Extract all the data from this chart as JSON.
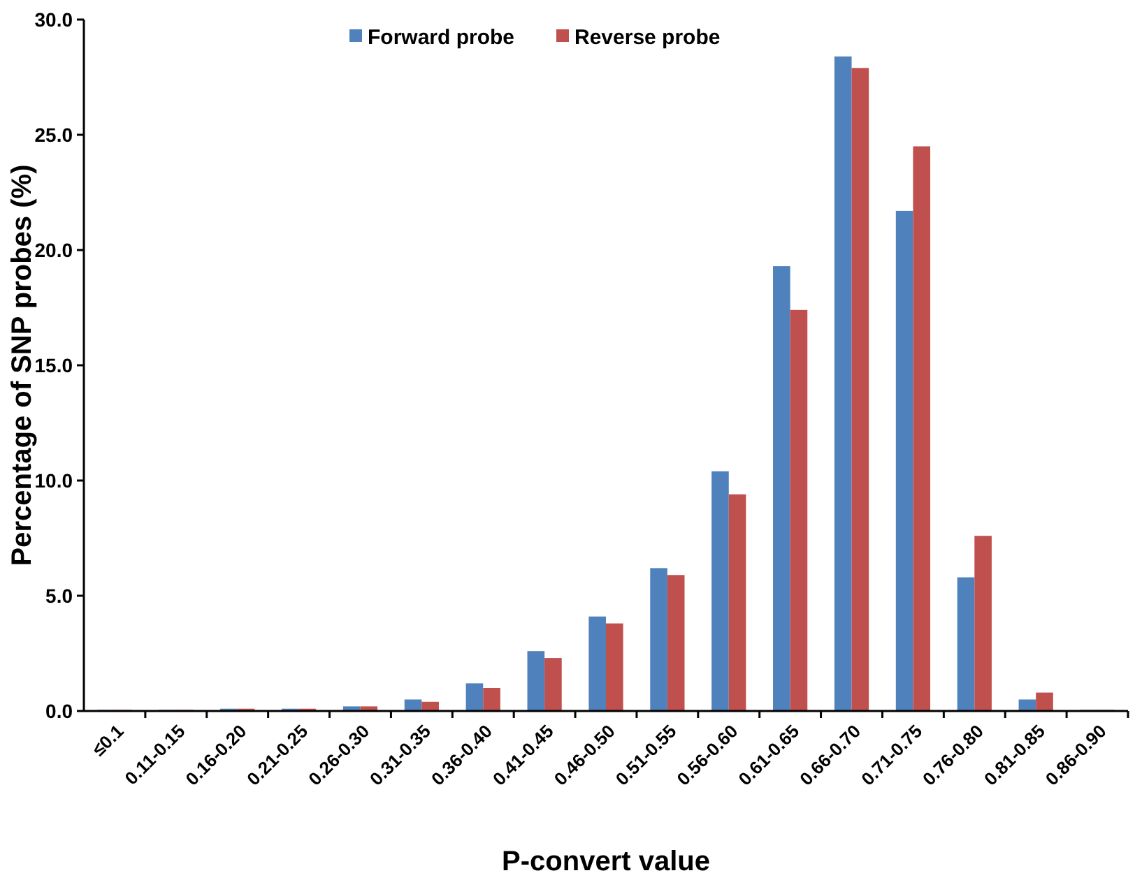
{
  "chart_data": {
    "type": "bar",
    "xlabel": "P-convert value",
    "ylabel": "Percentage of SNP probes (%)",
    "categories": [
      "≤0.1",
      "0.11-0.15",
      "0.16-0.20",
      "0.21-0.25",
      "0.26-0.30",
      "0.31-0.35",
      "0.36-0.40",
      "0.41-0.45",
      "0.46-0.50",
      "0.51-0.55",
      "0.56-0.60",
      "0.61-0.65",
      "0.66-0.70",
      "0.71-0.75",
      "0.76-0.80",
      "0.81-0.85",
      "0.86-0.90"
    ],
    "series": [
      {
        "name": "Forward probe",
        "color": "#4f81bd",
        "values": [
          0.05,
          0.05,
          0.1,
          0.1,
          0.2,
          0.5,
          1.2,
          2.6,
          4.1,
          6.2,
          10.4,
          19.3,
          28.4,
          21.7,
          5.8,
          0.5,
          0.05
        ]
      },
      {
        "name": "Reverse probe",
        "color": "#c0504d",
        "values": [
          0.05,
          0.05,
          0.1,
          0.1,
          0.2,
          0.4,
          1.0,
          2.3,
          3.8,
          5.9,
          9.4,
          17.4,
          27.9,
          24.5,
          7.6,
          0.8,
          0.05
        ]
      }
    ],
    "ylim": [
      0,
      30
    ],
    "yticks": [
      {
        "value": 0,
        "label": "0.0"
      },
      {
        "value": 5,
        "label": "5.0"
      },
      {
        "value": 10,
        "label": "10.0"
      },
      {
        "value": 15,
        "label": "15.0"
      },
      {
        "value": 20,
        "label": "20.0"
      },
      {
        "value": 25,
        "label": "25.0"
      },
      {
        "value": 30,
        "label": "30.0"
      }
    ],
    "legend": "top",
    "grid": false
  }
}
